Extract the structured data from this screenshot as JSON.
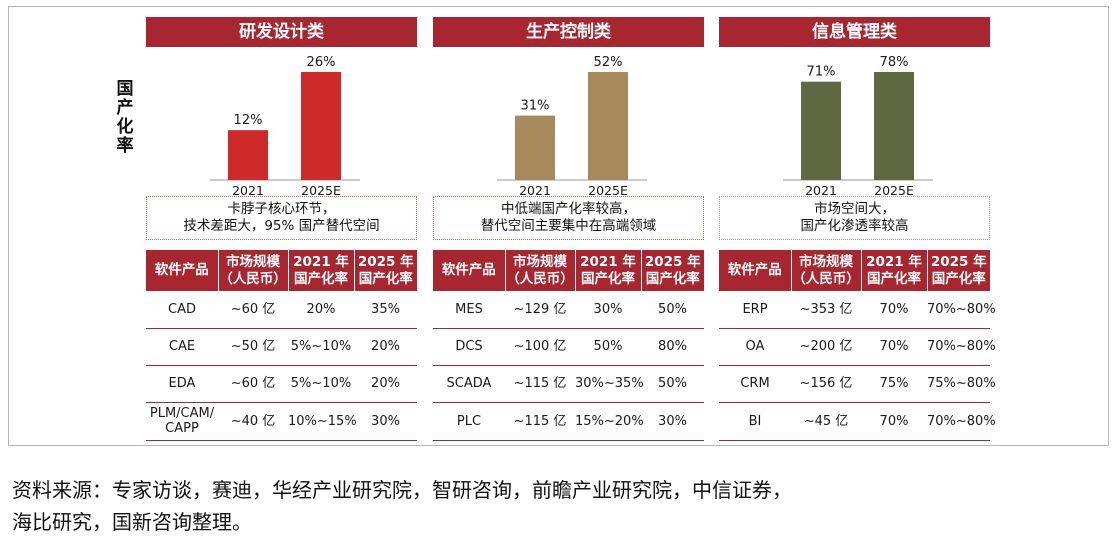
{
  "y_axis_label": [
    "国",
    "产",
    "化",
    "率"
  ],
  "chart_data": [
    {
      "type": "bar",
      "title": "研发设计类",
      "ylabel": "国产化率",
      "categories": [
        "2021",
        "2025E"
      ],
      "values": [
        12,
        26
      ],
      "value_labels": [
        "12%",
        "26%"
      ],
      "color": "#cf2a2a",
      "ylim": [
        0,
        26
      ]
    },
    {
      "type": "bar",
      "title": "生产控制类",
      "ylabel": "国产化率",
      "categories": [
        "2021",
        "2025E"
      ],
      "values": [
        31,
        52
      ],
      "value_labels": [
        "31%",
        "52%"
      ],
      "color": "#a68a5b",
      "ylim": [
        0,
        52
      ]
    },
    {
      "type": "bar",
      "title": "信息管理类",
      "ylabel": "国产化率",
      "categories": [
        "2021",
        "2025E"
      ],
      "values": [
        71,
        78
      ],
      "value_labels": [
        "71%",
        "78%"
      ],
      "color": "#5f6840",
      "ylim": [
        0,
        78
      ]
    }
  ],
  "panels": [
    {
      "title": "研发设计类",
      "note": [
        "卡脖子核心环节，",
        "技术差距大，95% 国产替代空间"
      ],
      "table": {
        "headers": [
          [
            "软件产品"
          ],
          [
            "市场规模",
            "（人民币）"
          ],
          [
            "2021 年",
            "国产化率"
          ],
          [
            "2025 年",
            "国产化率"
          ]
        ],
        "rows": [
          [
            [
              "CAD"
            ],
            "~60 亿",
            "20%",
            "35%"
          ],
          [
            [
              "CAE"
            ],
            "~50 亿",
            "5%~10%",
            "20%"
          ],
          [
            [
              "EDA"
            ],
            "~60 亿",
            "5%~10%",
            "20%"
          ],
          [
            [
              "PLM/CAM/",
              "CAPP"
            ],
            "~40 亿",
            "10%~15%",
            "30%"
          ]
        ]
      }
    },
    {
      "title": "生产控制类",
      "note": [
        "中低端国产化率较高，",
        "替代空间主要集中在高端领域"
      ],
      "table": {
        "headers": [
          [
            "软件产品"
          ],
          [
            "市场规模",
            "（人民币）"
          ],
          [
            "2021 年",
            "国产化率"
          ],
          [
            "2025 年",
            "国产化率"
          ]
        ],
        "rows": [
          [
            [
              "MES"
            ],
            "~129 亿",
            "30%",
            "50%"
          ],
          [
            [
              "DCS"
            ],
            "~100 亿",
            "50%",
            "80%"
          ],
          [
            [
              "SCADA"
            ],
            "~115 亿",
            "30%~35%",
            "50%"
          ],
          [
            [
              "PLC"
            ],
            "~115 亿",
            "15%~20%",
            "30%"
          ]
        ]
      }
    },
    {
      "title": "信息管理类",
      "note": [
        "市场空间大，",
        "国产化渗透率较高"
      ],
      "table": {
        "headers": [
          [
            "软件产品"
          ],
          [
            "市场规模",
            "（人民币）"
          ],
          [
            "2021 年",
            "国产化率"
          ],
          [
            "2025 年",
            "国产化率"
          ]
        ],
        "rows": [
          [
            [
              "ERP"
            ],
            "~353 亿",
            "70%",
            "70%~80%"
          ],
          [
            [
              "OA"
            ],
            "~200 亿",
            "70%",
            "70%~80%"
          ],
          [
            [
              "CRM"
            ],
            "~156 亿",
            "75%",
            "75%~80%"
          ],
          [
            [
              "BI"
            ],
            "~45 亿",
            "70%",
            "70%~80%"
          ]
        ]
      }
    }
  ],
  "source": [
    "资料来源：专家访谈，赛迪，华经产业研究院，智研咨询，前瞻产业研究院，中信证券，",
    "海比研究，国新咨询整理。"
  ]
}
